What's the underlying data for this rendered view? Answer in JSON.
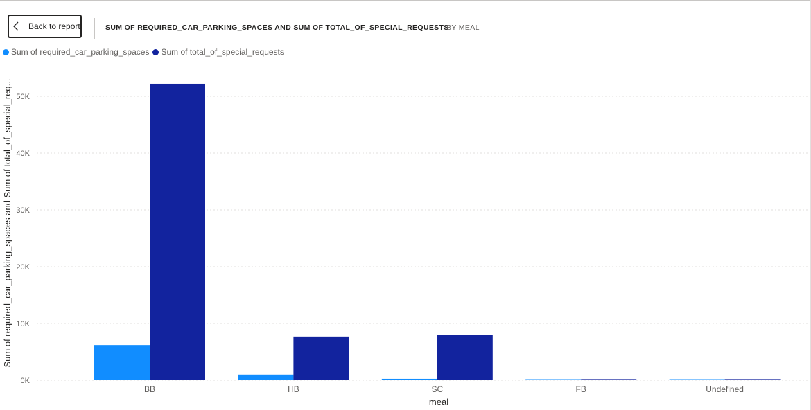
{
  "header": {
    "back_label": "Back to report",
    "title": "SUM OF REQUIRED_CAR_PARKING_SPACES AND SUM OF TOTAL_OF_SPECIAL_REQUESTS",
    "subtitle": "BY MEAL"
  },
  "colors": {
    "series1": "#118DFF",
    "series2": "#12239E",
    "grid": "#e1dfdd",
    "axis_text": "#605e5c"
  },
  "chart_data": {
    "type": "bar",
    "categories": [
      "BB",
      "HB",
      "SC",
      "FB",
      "Undefined"
    ],
    "series": [
      {
        "name": "Sum of required_car_parking_spaces",
        "values": [
          6200,
          1000,
          250,
          120,
          120
        ]
      },
      {
        "name": "Sum of total_of_special_requests",
        "values": [
          52200,
          7700,
          8000,
          200,
          200
        ]
      }
    ],
    "xlabel": "meal",
    "ylabel": "Sum of required_car_parking_spaces and Sum of total_of_special_req...",
    "yticks": [
      0,
      10000,
      20000,
      30000,
      40000,
      50000
    ],
    "ytick_labels": [
      "0K",
      "10K",
      "20K",
      "30K",
      "40K",
      "50K"
    ],
    "ylim": [
      0,
      53500
    ],
    "grid": true,
    "legend_position": "top-left"
  }
}
